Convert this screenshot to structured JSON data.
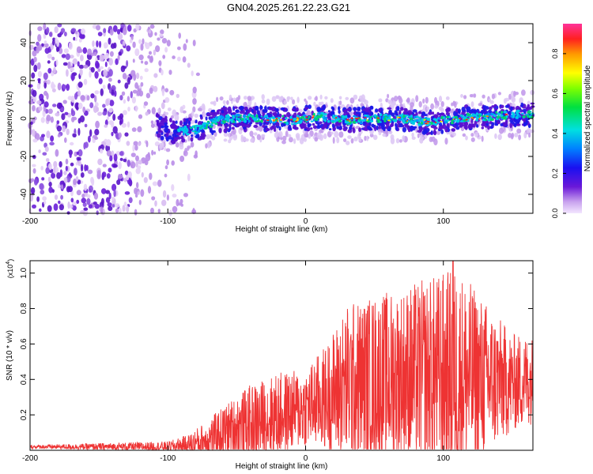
{
  "title": "GN04.2025.261.22.23.G21",
  "chart_data": [
    {
      "type": "heatmap",
      "name": "spectrogram",
      "xlabel": "Height of straight line (km)",
      "ylabel": "Frequency (Hz)",
      "xlim": [
        -200,
        165
      ],
      "ylim": [
        -50,
        50
      ],
      "xticks": [
        -200,
        -100,
        0,
        100
      ],
      "yticks": [
        -40,
        -20,
        0,
        20,
        40
      ],
      "xtick_labels": [
        "-200",
        "-100",
        "0",
        "100"
      ],
      "ytick_labels": [
        "-40",
        "-20",
        "0",
        "20",
        "40"
      ],
      "noise_region_km": [
        -200,
        -77
      ],
      "signal_trace": [
        {
          "x": -108,
          "y": -4
        },
        {
          "x": -95,
          "y": -7
        },
        {
          "x": -80,
          "y": -6
        },
        {
          "x": -65,
          "y": -1
        },
        {
          "x": -50,
          "y": 0
        },
        {
          "x": -30,
          "y": 0
        },
        {
          "x": -10,
          "y": -1
        },
        {
          "x": 0,
          "y": 0
        },
        {
          "x": 10,
          "y": 1
        },
        {
          "x": 30,
          "y": -1
        },
        {
          "x": 50,
          "y": 0
        },
        {
          "x": 70,
          "y": 0
        },
        {
          "x": 90,
          "y": -2
        },
        {
          "x": 110,
          "y": 0
        },
        {
          "x": 130,
          "y": 1
        },
        {
          "x": 150,
          "y": 2
        },
        {
          "x": 165,
          "y": 2
        }
      ],
      "colorbar": {
        "label": "Normalized spectral amplitude",
        "range": [
          0,
          0.95
        ],
        "ticks": [
          0.0,
          0.2,
          0.4,
          0.6,
          0.8
        ],
        "tick_labels": [
          "0.0",
          "0.2",
          "0.4",
          "0.6",
          "0.8"
        ]
      }
    },
    {
      "type": "line",
      "name": "snr",
      "xlabel": "Height of straight line (km)",
      "ylabel": "SNR (10 * v/v)",
      "exponent_label": "(x10",
      "exponent_power": "4",
      "exponent_close": ")",
      "xlim": [
        -200,
        165
      ],
      "ylim": [
        0,
        1.07
      ],
      "xticks": [
        -200,
        -100,
        0,
        100
      ],
      "yticks": [
        0.2,
        0.4,
        0.6,
        0.8,
        1.0
      ],
      "xtick_labels": [
        "-200",
        "-100",
        "0",
        "100"
      ],
      "ytick_labels": [
        "0.2",
        "0.4",
        "0.6",
        "0.8",
        "1.0"
      ],
      "color": "#ee3333",
      "envelope": [
        {
          "x": -200,
          "base": 0.02,
          "amp": 0.01
        },
        {
          "x": -100,
          "base": 0.02,
          "amp": 0.03
        },
        {
          "x": -85,
          "base": 0.03,
          "amp": 0.06
        },
        {
          "x": -70,
          "base": 0.06,
          "amp": 0.12
        },
        {
          "x": -55,
          "base": 0.12,
          "amp": 0.16
        },
        {
          "x": -40,
          "base": 0.15,
          "amp": 0.22
        },
        {
          "x": -20,
          "base": 0.2,
          "amp": 0.24
        },
        {
          "x": 0,
          "base": 0.24,
          "amp": 0.22
        },
        {
          "x": 15,
          "base": 0.3,
          "amp": 0.3
        },
        {
          "x": 30,
          "base": 0.38,
          "amp": 0.45
        },
        {
          "x": 50,
          "base": 0.4,
          "amp": 0.48
        },
        {
          "x": 70,
          "base": 0.42,
          "amp": 0.5
        },
        {
          "x": 90,
          "base": 0.43,
          "amp": 0.55
        },
        {
          "x": 110,
          "base": 0.42,
          "amp": 0.62
        },
        {
          "x": 130,
          "base": 0.4,
          "amp": 0.45
        },
        {
          "x": 150,
          "base": 0.38,
          "amp": 0.28
        },
        {
          "x": 165,
          "base": 0.4,
          "amp": 0.25
        }
      ],
      "peak": {
        "x": 107,
        "y": 1.07
      }
    }
  ]
}
